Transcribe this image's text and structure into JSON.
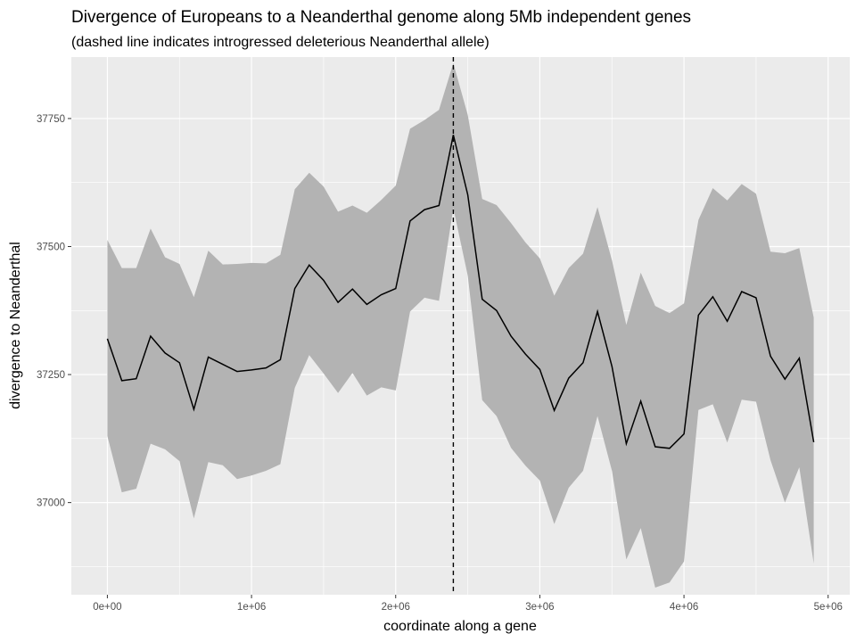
{
  "chart_data": {
    "type": "area",
    "title": "Divergence of Europeans to a Neanderthal genome along 5Mb independent genes",
    "subtitle": "(dashed line indicates introgressed deleterious Neanderthal allele)",
    "xlabel": "coordinate along a gene",
    "ylabel": "divergence to Neanderthal",
    "xlim": [
      -250000,
      5150000
    ],
    "ylim": [
      36820,
      37870
    ],
    "x_ticks": [
      0,
      1000000,
      2000000,
      3000000,
      4000000,
      5000000
    ],
    "x_tick_labels": [
      "0e+00",
      "1e+06",
      "2e+06",
      "3e+06",
      "4e+06",
      "5e+06"
    ],
    "y_ticks": [
      37000,
      37250,
      37500,
      37750
    ],
    "y_tick_labels": [
      "37000",
      "37250",
      "37500",
      "37750"
    ],
    "vline_x": 2400000,
    "series": [
      {
        "style": "line",
        "x": [
          0,
          100000,
          200000,
          300000,
          400000,
          500000,
          600000,
          700000,
          800000,
          900000,
          1000000,
          1100000,
          1200000,
          1300000,
          1400000,
          1500000,
          1600000,
          1700000,
          1800000,
          1900000,
          2000000,
          2100000,
          2200000,
          2300000,
          2400000,
          2500000,
          2600000,
          2700000,
          2800000,
          2900000,
          3000000,
          3100000,
          3200000,
          3300000,
          3400000,
          3500000,
          3600000,
          3700000,
          3800000,
          3900000,
          4000000,
          4100000,
          4200000,
          4300000,
          4400000,
          4500000,
          4600000,
          4700000,
          4800000,
          4900000
        ],
        "values": [
          37320,
          37238,
          37242,
          37325,
          37292,
          37273,
          37182,
          37284,
          37270,
          37256,
          37259,
          37263,
          37279,
          37418,
          37464,
          37434,
          37391,
          37417,
          37387,
          37406,
          37418,
          37550,
          37572,
          37580,
          37718,
          37601,
          37397,
          37375,
          37325,
          37290,
          37260,
          37180,
          37243,
          37273,
          37373,
          37266,
          37115,
          37198,
          37109,
          37106,
          37134,
          37366,
          37402,
          37354,
          37412,
          37400,
          37286,
          37241,
          37282,
          37118
        ],
        "lower": [
          37130,
          37020,
          37027,
          37115,
          37104,
          37081,
          36969,
          37079,
          37073,
          37046,
          37053,
          37062,
          37075,
          37224,
          37288,
          37252,
          37214,
          37253,
          37209,
          37225,
          37219,
          37373,
          37400,
          37394,
          37575,
          37443,
          37200,
          37169,
          37107,
          37072,
          37043,
          36958,
          37029,
          37062,
          37169,
          37062,
          36889,
          36950,
          36834,
          36844,
          36885,
          37181,
          37192,
          37117,
          37201,
          37197,
          37083,
          37000,
          37069,
          36881
        ],
        "upper": [
          37513,
          37458,
          37458,
          37535,
          37479,
          37466,
          37401,
          37492,
          37465,
          37466,
          37468,
          37467,
          37484,
          37612,
          37644,
          37617,
          37568,
          37580,
          37566,
          37591,
          37619,
          37730,
          37747,
          37767,
          37858,
          37757,
          37593,
          37581,
          37546,
          37508,
          37477,
          37404,
          37458,
          37486,
          37577,
          37473,
          37347,
          37449,
          37384,
          37370,
          37389,
          37552,
          37614,
          37590,
          37622,
          37603,
          37490,
          37487,
          37497,
          37361
        ]
      }
    ],
    "grid": true,
    "legend": "none"
  },
  "colors": {
    "panel_background": "#ebebeb",
    "grid_major": "#ffffff",
    "ribbon": "#b3b3b3",
    "line": "#000000"
  }
}
